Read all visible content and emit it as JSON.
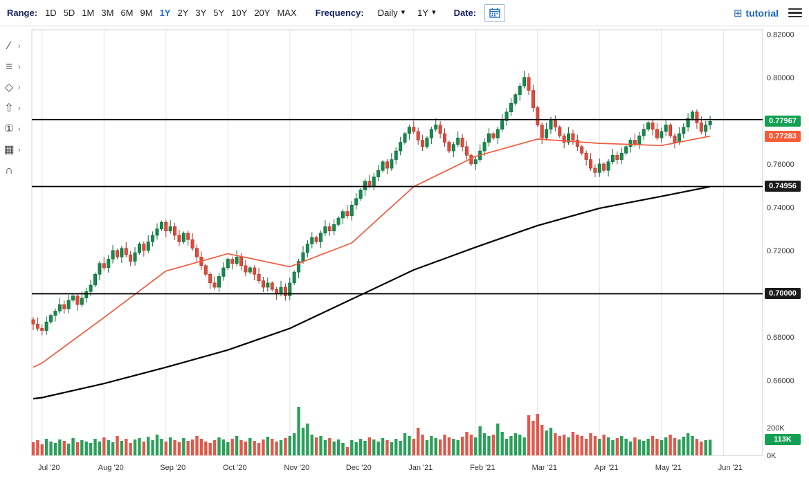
{
  "toolbar": {
    "range_label": "Range:",
    "range_options": [
      "1D",
      "5D",
      "1M",
      "3M",
      "6M",
      "9M",
      "1Y",
      "2Y",
      "3Y",
      "5Y",
      "10Y",
      "20Y",
      "MAX"
    ],
    "active_range": "1Y",
    "frequency_label": "Frequency:",
    "frequency_value": "Daily",
    "period_value": "1Y",
    "date_label": "Date:",
    "brand": "tutorial"
  },
  "side_tools": [
    {
      "name": "trend-line-tool",
      "glyph": "∕",
      "chevron": "›"
    },
    {
      "name": "indicator-list-tool",
      "glyph": "≡",
      "chevron": "›"
    },
    {
      "name": "shapes-tool",
      "glyph": "◇",
      "chevron": "›"
    },
    {
      "name": "arrow-marker-tool",
      "glyph": "⇧",
      "chevron": "›"
    },
    {
      "name": "annotation-number-tool",
      "glyph": "①",
      "chevron": "›"
    },
    {
      "name": "grid-layout-tool",
      "glyph": "▦",
      "chevron": "›"
    },
    {
      "name": "magnet-tool",
      "glyph": "∩",
      "chevron": ""
    }
  ],
  "chart_data": {
    "type": "candlestick",
    "frequency": "Daily",
    "range": "1Y",
    "x_labels": [
      "Jul '20",
      "Aug '20",
      "Sep '20",
      "Oct '20",
      "Nov '20",
      "Dec '20",
      "Jan '21",
      "Feb '21",
      "Mar '21",
      "Apr '21",
      "May '21",
      "Jun '21"
    ],
    "y_ticks": [
      "0.82000",
      "0.80000",
      "0.78000",
      "0.76000",
      "0.74000",
      "0.72000",
      "0.70000",
      "0.68000",
      "0.66000"
    ],
    "ylim": [
      0.656,
      0.822
    ],
    "volume_ticks": [
      "200K",
      "0K"
    ],
    "closes": [
      0.686,
      0.684,
      0.683,
      0.687,
      0.69,
      0.692,
      0.695,
      0.693,
      0.697,
      0.699,
      0.695,
      0.698,
      0.701,
      0.704,
      0.709,
      0.714,
      0.712,
      0.716,
      0.72,
      0.717,
      0.721,
      0.718,
      0.715,
      0.719,
      0.723,
      0.72,
      0.724,
      0.727,
      0.73,
      0.733,
      0.729,
      0.731,
      0.727,
      0.724,
      0.728,
      0.725,
      0.721,
      0.717,
      0.713,
      0.709,
      0.705,
      0.703,
      0.708,
      0.712,
      0.716,
      0.714,
      0.717,
      0.713,
      0.71,
      0.712,
      0.709,
      0.706,
      0.703,
      0.705,
      0.702,
      0.7,
      0.703,
      0.699,
      0.705,
      0.71,
      0.715,
      0.719,
      0.723,
      0.726,
      0.724,
      0.728,
      0.731,
      0.729,
      0.732,
      0.735,
      0.738,
      0.736,
      0.741,
      0.744,
      0.748,
      0.752,
      0.75,
      0.754,
      0.757,
      0.761,
      0.758,
      0.762,
      0.766,
      0.77,
      0.774,
      0.777,
      0.775,
      0.771,
      0.768,
      0.772,
      0.776,
      0.778,
      0.774,
      0.77,
      0.766,
      0.769,
      0.772,
      0.768,
      0.764,
      0.76,
      0.762,
      0.766,
      0.77,
      0.774,
      0.772,
      0.776,
      0.78,
      0.784,
      0.788,
      0.792,
      0.796,
      0.8,
      0.794,
      0.786,
      0.778,
      0.772,
      0.776,
      0.78,
      0.777,
      0.773,
      0.77,
      0.774,
      0.771,
      0.768,
      0.765,
      0.762,
      0.758,
      0.756,
      0.76,
      0.757,
      0.761,
      0.764,
      0.762,
      0.765,
      0.768,
      0.771,
      0.769,
      0.773,
      0.776,
      0.779,
      0.776,
      0.772,
      0.775,
      0.778,
      0.773,
      0.77,
      0.774,
      0.777,
      0.781,
      0.784,
      0.779,
      0.775,
      0.778,
      0.77967
    ],
    "volumes": [
      95,
      110,
      80,
      120,
      100,
      90,
      115,
      105,
      85,
      125,
      95,
      110,
      100,
      90,
      120,
      100,
      130,
      110,
      95,
      140,
      105,
      120,
      90,
      115,
      125,
      100,
      135,
      110,
      150,
      120,
      100,
      130,
      110,
      95,
      125,
      105,
      115,
      140,
      120,
      100,
      90,
      110,
      130,
      115,
      95,
      120,
      140,
      110,
      100,
      125,
      105,
      90,
      115,
      135,
      120,
      100,
      110,
      125,
      140,
      160,
      350,
      200,
      230,
      150,
      130,
      140,
      110,
      125,
      100,
      115,
      90,
      60,
      110,
      95,
      120,
      105,
      130,
      115,
      100,
      125,
      110,
      95,
      120,
      105,
      160,
      140,
      120,
      200,
      150,
      110,
      140,
      125,
      115,
      150,
      130,
      120,
      110,
      135,
      170,
      150,
      130,
      210,
      160,
      140,
      150,
      230,
      170,
      120,
      140,
      160,
      150,
      130,
      290,
      250,
      300,
      220,
      180,
      200,
      160,
      140,
      150,
      130,
      170,
      150,
      140,
      120,
      160,
      140,
      120,
      150,
      130,
      110,
      125,
      140,
      120,
      100,
      130,
      115,
      105,
      120,
      140,
      120,
      110,
      130,
      150,
      125,
      115,
      135,
      160,
      140,
      120,
      100,
      110,
      113
    ],
    "ma_fast": {
      "name": "moving-average-fast",
      "points": [
        [
          0,
          0.666
        ],
        [
          2,
          0.668
        ],
        [
          16,
          0.689
        ],
        [
          30,
          0.7105
        ],
        [
          44,
          0.7185
        ],
        [
          58,
          0.7125
        ],
        [
          72,
          0.7235
        ],
        [
          86,
          0.7495
        ],
        [
          100,
          0.7635
        ],
        [
          114,
          0.7715
        ],
        [
          128,
          0.7695
        ],
        [
          142,
          0.7685
        ],
        [
          153,
          0.77283
        ]
      ]
    },
    "ma_slow": {
      "name": "moving-average-slow",
      "points": [
        [
          0,
          0.6515
        ],
        [
          2,
          0.652
        ],
        [
          16,
          0.6585
        ],
        [
          30,
          0.666
        ],
        [
          44,
          0.674
        ],
        [
          58,
          0.684
        ],
        [
          72,
          0.6975
        ],
        [
          86,
          0.711
        ],
        [
          100,
          0.7215
        ],
        [
          114,
          0.7315
        ],
        [
          128,
          0.7395
        ],
        [
          142,
          0.745
        ],
        [
          153,
          0.7495
        ]
      ]
    },
    "drawn_lines": [
      {
        "value": 0.7805,
        "badge": ""
      },
      {
        "value": 0.74956,
        "badge": "0.74956"
      },
      {
        "value": 0.7,
        "badge": "0.70000"
      }
    ],
    "last_price_label": "0.77967",
    "ma_value_label": "0.77283",
    "volume_badge_label": "113K",
    "colors": {
      "up": "#148a4c",
      "up_border": "#0b6b39",
      "down": "#e04a3a",
      "down_border": "#b03226",
      "vol_up": "#2aa05a",
      "vol_down": "#e0584a",
      "ma_fast": "#f25a3c",
      "ma_slow": "#000000",
      "badge_last": "#14a053",
      "badge_ma": "#fa5a37",
      "badge_line": "#1b1b1b",
      "accent_blue": "#2465d6"
    }
  }
}
